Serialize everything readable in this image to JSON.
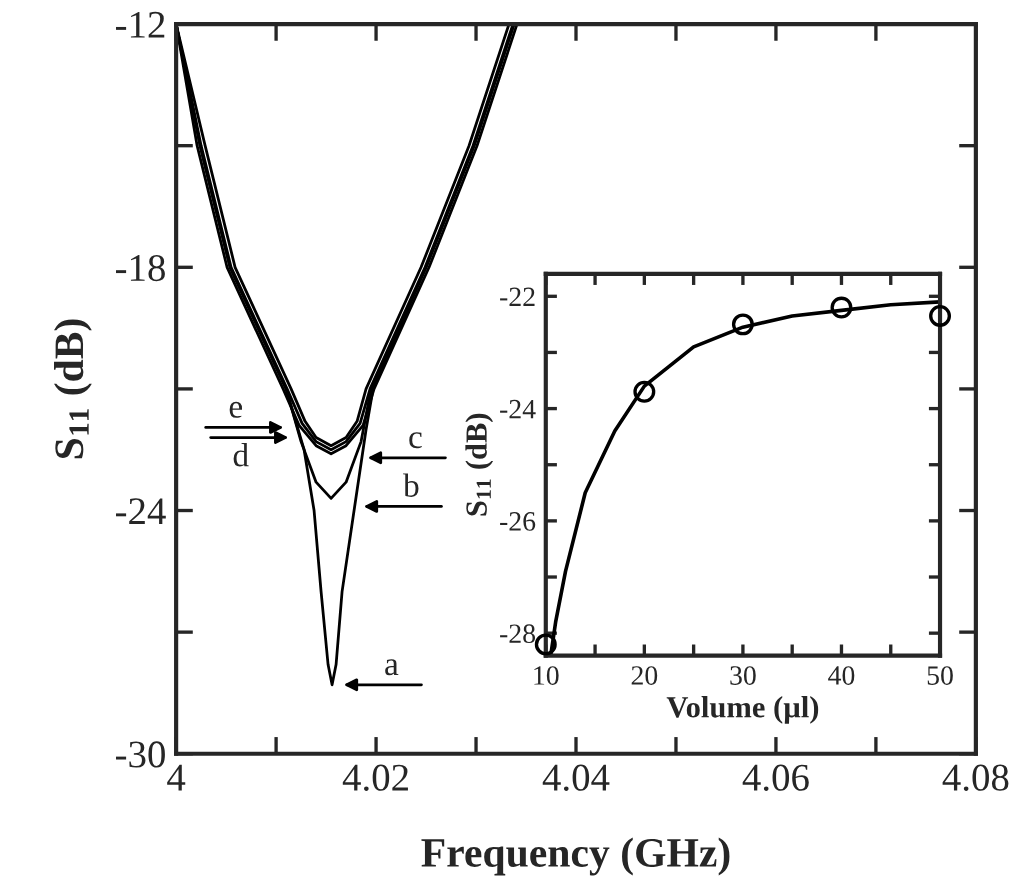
{
  "chart_data": [
    {
      "type": "line",
      "xlabel": "Frequency (GHz)",
      "ylabel": "S$_{11}$ (dB)",
      "xlim": [
        4.0,
        4.08
      ],
      "ylim": [
        -30,
        -12
      ],
      "xticks": [
        4,
        {
          "value": 4.01,
          "label": null
        },
        4.02,
        {
          "value": 4.03,
          "label": null
        },
        4.04,
        {
          "value": 4.05,
          "label": null
        },
        4.06,
        {
          "value": 4.07,
          "label": null
        },
        4.08
      ],
      "yticks": [
        -30,
        {
          "value": -27,
          "label": null
        },
        -24,
        {
          "value": -21,
          "label": null
        },
        -18,
        {
          "value": -15,
          "label": null
        },
        -12
      ],
      "grid": false,
      "legend": false,
      "series": [
        {
          "color": "#000000",
          "x": [
            4.0,
            4.0024,
            4.0054,
            4.011,
            4.0128,
            4.0138,
            4.0145,
            4.0152,
            4.0156,
            4.016,
            4.0166,
            4.0178,
            4.019,
            4.0197,
            4.025,
            4.0298,
            4.0338
          ],
          "values": [
            -12,
            -15,
            -18,
            -21,
            -22.5,
            -24,
            -26,
            -27.8,
            -28.3,
            -27.8,
            -26,
            -24,
            -22,
            -21,
            -18,
            -15,
            -12
          ]
        },
        {
          "color": "#000000",
          "x": [
            4.0,
            4.0024,
            4.0054,
            4.011,
            4.0125,
            4.014,
            4.0155,
            4.017,
            4.0185,
            4.0195,
            4.025,
            4.0298,
            4.0338
          ],
          "values": [
            -12,
            -15,
            -18,
            -21,
            -22.3,
            -23.3,
            -23.7,
            -23.3,
            -22.3,
            -21,
            -18,
            -15,
            -12
          ]
        },
        {
          "color": "#000000",
          "x": [
            4.0,
            4.0021,
            4.0051,
            4.0107,
            4.0123,
            4.014,
            4.0155,
            4.017,
            4.0187,
            4.0198,
            4.0253,
            4.0301,
            4.0341
          ],
          "values": [
            -12,
            -15,
            -18,
            -21,
            -21.9,
            -22.4,
            -22.6,
            -22.4,
            -21.9,
            -21,
            -18,
            -15,
            -12
          ]
        },
        {
          "color": "#000000",
          "x": [
            4.0,
            4.0025,
            4.0055,
            4.0111,
            4.0126,
            4.014,
            4.0155,
            4.017,
            4.0184,
            4.0194,
            4.0249,
            4.0297,
            4.0337
          ],
          "values": [
            -12,
            -15,
            -18,
            -21,
            -21.85,
            -22.3,
            -22.5,
            -22.3,
            -21.85,
            -21,
            -18,
            -15,
            -12
          ]
        },
        {
          "color": "#000000",
          "x": [
            4.0,
            4.0029,
            4.0059,
            4.0115,
            4.0129,
            4.014,
            4.0155,
            4.017,
            4.0181,
            4.019,
            4.0245,
            4.0293,
            4.0333
          ],
          "values": [
            -12,
            -15,
            -18,
            -21,
            -21.8,
            -22.2,
            -22.4,
            -22.2,
            -21.8,
            -21,
            -18,
            -15,
            -12
          ]
        }
      ],
      "annotations": [
        {
          "text": "a",
          "x": 4.0162,
          "y": -28.3
        },
        {
          "text": "b",
          "x": 4.0182,
          "y": -23.9
        },
        {
          "text": "c",
          "x": 4.0186,
          "y": -22.7
        },
        {
          "text": "d",
          "x": 4.0118,
          "y": -22.2
        },
        {
          "text": "e",
          "x": 4.0113,
          "y": -21.95
        }
      ]
    },
    {
      "type": "scatter",
      "xlabel": "Volume (µl)",
      "ylabel": "S$_{11}$ (dB)",
      "xlim": [
        10,
        50
      ],
      "ylim": [
        -28.4,
        -21.6
      ],
      "xticks": [
        10,
        {
          "value": 15,
          "label": null
        },
        20,
        {
          "value": 25,
          "label": null
        },
        30,
        {
          "value": 35,
          "label": null
        },
        40,
        {
          "value": 45,
          "label": null
        },
        50
      ],
      "yticks": [
        -28,
        {
          "value": -27,
          "label": null
        },
        -26,
        {
          "value": -25,
          "label": null
        },
        -24,
        {
          "value": -23,
          "label": null
        },
        -22
      ],
      "grid": false,
      "series": [
        {
          "type": "scatter",
          "marker": "circle",
          "color": "#000000",
          "x": [
            10,
            20,
            30,
            40,
            50
          ],
          "values": [
            -28.2,
            -23.7,
            -22.5,
            -22.2,
            -22.35
          ]
        },
        {
          "type": "line",
          "color": "#000000",
          "x": [
            10.5,
            11,
            12,
            14,
            17,
            20,
            25,
            30,
            35,
            40,
            45,
            50
          ],
          "values": [
            -28.4,
            -27.8,
            -26.9,
            -25.5,
            -24.4,
            -23.6,
            -22.9,
            -22.55,
            -22.35,
            -22.25,
            -22.15,
            -22.1
          ]
        }
      ]
    }
  ]
}
